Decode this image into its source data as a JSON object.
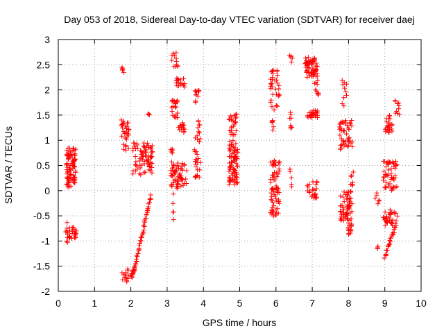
{
  "chart_data": {
    "type": "scatter",
    "title": "Day 053 of 2018, Sidereal Day-to-day VTEC variation (SDTVAR) for receiver daej",
    "xlabel": "GPS time / hours",
    "ylabel": "SDTVAR / TECUs",
    "xlim": [
      0,
      10
    ],
    "ylim": [
      -2,
      3
    ],
    "xticks": [
      "0",
      "1",
      "2",
      "3",
      "4",
      "5",
      "6",
      "7",
      "8",
      "9",
      "10"
    ],
    "yticks": [
      "-2",
      "-1.5",
      "-1",
      "-0.5",
      "0",
      "0.5",
      "1",
      "1.5",
      "2",
      "2.5",
      "3"
    ],
    "grid": true,
    "marker": "+",
    "color": "#ff0000",
    "clusters": [
      {
        "x": [
          0.22,
          0.48
        ],
        "y": [
          0.05,
          0.85
        ],
        "n": 90
      },
      {
        "x": [
          0.22,
          0.5
        ],
        "y": [
          -0.98,
          -0.72
        ],
        "n": 30
      },
      {
        "x": [
          0.2,
          0.26
        ],
        "y": [
          -1.18,
          -0.58
        ],
        "n": 5
      },
      {
        "x": [
          1.72,
          1.82
        ],
        "y": [
          2.15,
          2.48
        ],
        "n": 5
      },
      {
        "x": [
          1.72,
          1.95
        ],
        "y": [
          0.8,
          1.42
        ],
        "n": 30
      },
      {
        "x": [
          1.75,
          1.95
        ],
        "y": [
          -1.85,
          -1.55
        ],
        "n": 14
      },
      {
        "x": [
          2.05,
          2.6
        ],
        "y": [
          0.3,
          0.95
        ],
        "n": 80
      },
      {
        "x": [
          2.45,
          2.55
        ],
        "y": [
          1.5,
          1.58
        ],
        "n": 3
      },
      {
        "x": [
          3.1,
          3.55
        ],
        "y": [
          0.0,
          0.55
        ],
        "n": 60
      },
      {
        "x": [
          3.12,
          3.3
        ],
        "y": [
          2.4,
          2.8
        ],
        "n": 12
      },
      {
        "x": [
          3.12,
          3.3
        ],
        "y": [
          1.4,
          1.8
        ],
        "n": 20
      },
      {
        "x": [
          3.25,
          3.5
        ],
        "y": [
          2.05,
          2.25
        ],
        "n": 18
      },
      {
        "x": [
          3.25,
          3.5
        ],
        "y": [
          1.1,
          1.35
        ],
        "n": 14
      },
      {
        "x": [
          3.1,
          3.2
        ],
        "y": [
          -0.6,
          0.9
        ],
        "n": 15
      },
      {
        "x": [
          3.75,
          3.9
        ],
        "y": [
          1.75,
          2.0
        ],
        "n": 12
      },
      {
        "x": [
          3.75,
          3.92
        ],
        "y": [
          0.25,
          1.4
        ],
        "n": 35
      },
      {
        "x": [
          4.7,
          4.95
        ],
        "y": [
          0.1,
          1.0
        ],
        "n": 80
      },
      {
        "x": [
          4.7,
          4.95
        ],
        "y": [
          1.1,
          1.55
        ],
        "n": 25
      },
      {
        "x": [
          5.85,
          6.1
        ],
        "y": [
          -0.55,
          0.6
        ],
        "n": 70
      },
      {
        "x": [
          5.85,
          6.1
        ],
        "y": [
          1.6,
          2.4
        ],
        "n": 35
      },
      {
        "x": [
          5.85,
          5.95
        ],
        "y": [
          1.2,
          1.4
        ],
        "n": 6
      },
      {
        "x": [
          6.35,
          6.45
        ],
        "y": [
          2.55,
          2.75
        ],
        "n": 5
      },
      {
        "x": [
          6.38,
          6.45
        ],
        "y": [
          1.2,
          1.7
        ],
        "n": 8
      },
      {
        "x": [
          6.38,
          6.45
        ],
        "y": [
          0.0,
          0.5
        ],
        "n": 5
      },
      {
        "x": [
          6.8,
          7.15
        ],
        "y": [
          2.25,
          2.65
        ],
        "n": 60
      },
      {
        "x": [
          7.05,
          7.18
        ],
        "y": [
          1.8,
          2.2
        ],
        "n": 10
      },
      {
        "x": [
          6.85,
          7.15
        ],
        "y": [
          1.45,
          1.6
        ],
        "n": 25
      },
      {
        "x": [
          6.85,
          7.15
        ],
        "y": [
          -0.15,
          0.2
        ],
        "n": 25
      },
      {
        "x": [
          7.75,
          8.1
        ],
        "y": [
          -0.6,
          0.0
        ],
        "n": 60
      },
      {
        "x": [
          7.75,
          8.1
        ],
        "y": [
          0.8,
          1.4
        ],
        "n": 45
      },
      {
        "x": [
          7.8,
          7.95
        ],
        "y": [
          1.6,
          2.2
        ],
        "n": 10
      },
      {
        "x": [
          7.95,
          8.1
        ],
        "y": [
          -0.9,
          -0.6
        ],
        "n": 15
      },
      {
        "x": [
          8.05,
          8.15
        ],
        "y": [
          0.1,
          0.4
        ],
        "n": 8
      },
      {
        "x": [
          8.7,
          8.85
        ],
        "y": [
          -0.3,
          0.0
        ],
        "n": 6
      },
      {
        "x": [
          8.75,
          8.85
        ],
        "y": [
          -1.2,
          -1.1
        ],
        "n": 3
      },
      {
        "x": [
          8.95,
          9.35
        ],
        "y": [
          0.0,
          0.6
        ],
        "n": 50
      },
      {
        "x": [
          8.95,
          9.35
        ],
        "y": [
          -0.7,
          -0.35
        ],
        "n": 35
      },
      {
        "x": [
          9.0,
          9.2
        ],
        "y": [
          1.15,
          1.5
        ],
        "n": 25
      },
      {
        "x": [
          9.28,
          9.4
        ],
        "y": [
          1.5,
          1.8
        ],
        "n": 10
      }
    ],
    "trends": [
      {
        "x": [
          2.05,
          2.55
        ],
        "y": [
          -1.7,
          -0.1
        ],
        "n": 50
      },
      {
        "x": [
          9.0,
          9.3
        ],
        "y": [
          -1.3,
          -0.7
        ],
        "n": 25
      },
      {
        "x": [
          2.0,
          2.1
        ],
        "y": [
          -1.72,
          -1.55
        ],
        "n": 10
      }
    ]
  }
}
